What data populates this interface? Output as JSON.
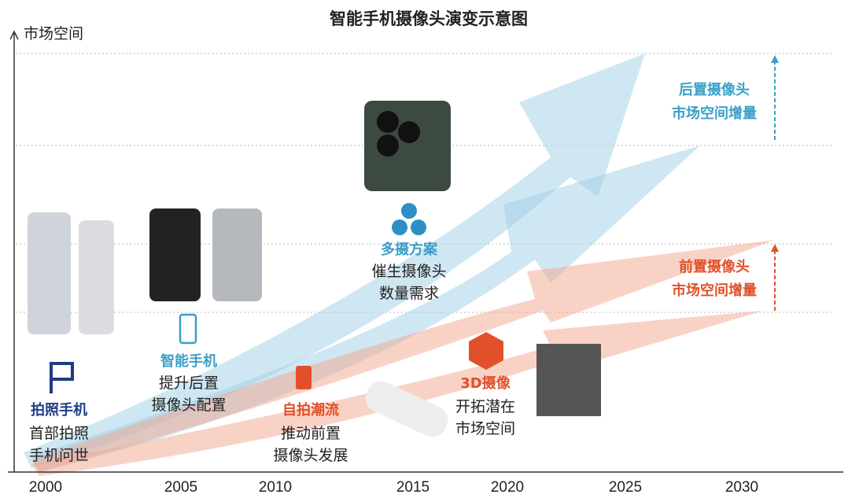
{
  "title": "智能手机摄像头演变示意图",
  "axis": {
    "y_label": "市场空间",
    "x_labels": [
      "2000",
      "2005",
      "2010",
      "2015",
      "2020",
      "2025",
      "2030"
    ]
  },
  "milestones": [
    {
      "title": "拍照手机",
      "lines": [
        "首部拍照",
        "手机问世"
      ]
    },
    {
      "title": "智能手机",
      "lines": [
        "提升后置",
        "摄像头配置"
      ]
    },
    {
      "title": "自拍潮流",
      "lines": [
        "推动前置",
        "摄像头发展"
      ]
    },
    {
      "title": "多摄方案",
      "lines": [
        "催生摄像头",
        "数量需求"
      ]
    },
    {
      "title": "3D摄像",
      "lines": [
        "开拓潜在",
        "市场空间"
      ]
    }
  ],
  "side_notes": [
    {
      "lines": [
        "后置摄像头",
        "市场空间增量"
      ]
    },
    {
      "lines": [
        "前置摄像头",
        "市场空间增量"
      ]
    }
  ]
}
